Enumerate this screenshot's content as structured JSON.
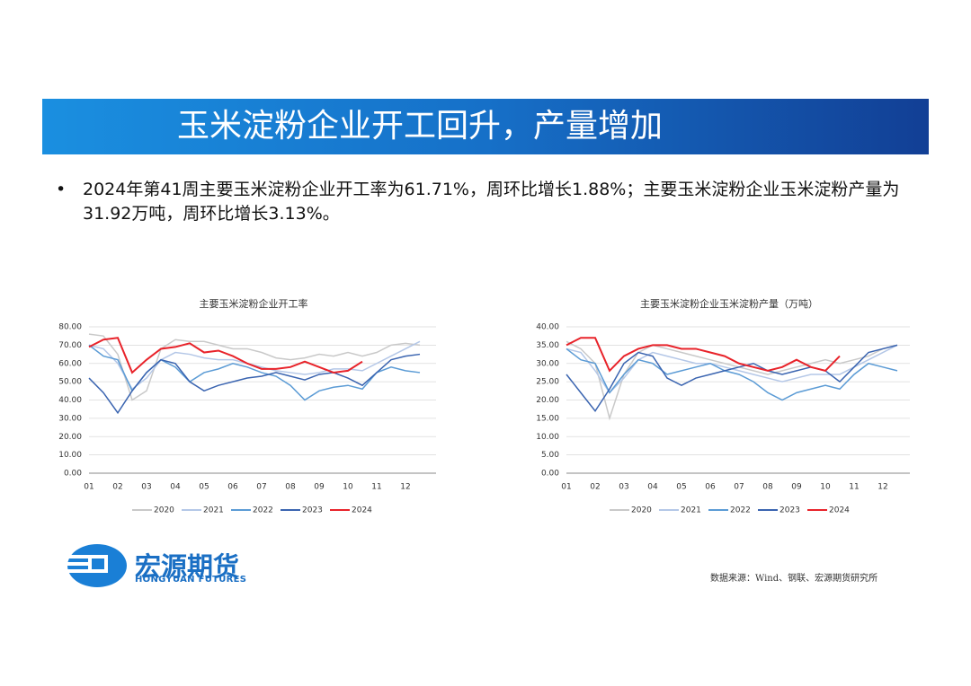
{
  "title": "玉米淀粉企业开工回升，产量增加",
  "bullet": "2024年第41周主要玉米淀粉企业开工率为61.71%，周环比增长1.88%；主要玉米淀粉企业玉米淀粉产量为31.92万吨，周环比增长3.13%。",
  "logo": {
    "cn": "宏源期货",
    "en": "HONGYUAN FUTURES"
  },
  "source": "数据来源：Wind、钢联、宏源期货研究所",
  "chart_data": [
    {
      "type": "line",
      "title": "主要玉米淀粉企业开工率",
      "categories": [
        "01",
        null,
        "02",
        null,
        "03",
        null,
        "04",
        null,
        "05",
        null,
        "06",
        null,
        "07",
        null,
        "08",
        null,
        "09",
        null,
        "10",
        null,
        "11",
        null,
        "12",
        null
      ],
      "ylim": [
        0,
        80
      ],
      "yticks": [
        {
          "value": 0,
          "label": "0.00"
        },
        {
          "value": 10,
          "label": "10.00"
        },
        {
          "value": 20,
          "label": "20.00"
        },
        {
          "value": 30,
          "label": "30.00"
        },
        {
          "value": 40,
          "label": "40.00"
        },
        {
          "value": 50,
          "label": "50.00"
        },
        {
          "value": 60,
          "label": "60.00"
        },
        {
          "value": 70,
          "label": "70.00"
        },
        {
          "value": 80,
          "label": "80.00"
        }
      ],
      "grid": true,
      "series": [
        {
          "name": "2020",
          "color": "#c9c9c9",
          "values": [
            76,
            75,
            65,
            40,
            45,
            68,
            73,
            72,
            72,
            70,
            68,
            68,
            66,
            63,
            62,
            63,
            65,
            64,
            66,
            64,
            66,
            70,
            71,
            70
          ]
        },
        {
          "name": "2021",
          "color": "#b4c7e7",
          "values": [
            70,
            68,
            60,
            46,
            52,
            62,
            66,
            65,
            63,
            62,
            62,
            60,
            58,
            56,
            55,
            54,
            55,
            57,
            57,
            56,
            60,
            64,
            68,
            72
          ]
        },
        {
          "name": "2022",
          "color": "#5b9bd5",
          "values": [
            70,
            64,
            62,
            45,
            55,
            62,
            58,
            50,
            55,
            57,
            60,
            58,
            55,
            53,
            48,
            40,
            45,
            47,
            48,
            46,
            55,
            58,
            56,
            55
          ]
        },
        {
          "name": "2023",
          "color": "#3a64b0",
          "values": [
            52,
            44,
            33,
            45,
            55,
            62,
            60,
            50,
            45,
            48,
            50,
            52,
            53,
            55,
            53,
            51,
            54,
            55,
            52,
            48,
            55,
            62,
            64,
            65
          ]
        },
        {
          "name": "2024",
          "color": "#e8232a",
          "values": [
            69,
            73,
            74,
            55,
            62,
            68,
            69,
            71,
            66,
            67,
            64,
            60,
            57,
            57,
            58,
            61,
            58,
            55,
            56,
            61,
            null,
            null,
            null,
            null
          ]
        }
      ]
    },
    {
      "type": "line",
      "title": "主要玉米淀粉企业玉米淀粉产量（万吨）",
      "categories": [
        "01",
        null,
        "02",
        null,
        "03",
        null,
        "04",
        null,
        "05",
        null,
        "06",
        null,
        "07",
        null,
        "08",
        null,
        "09",
        null,
        "10",
        null,
        "11",
        null,
        "12",
        null
      ],
      "ylim": [
        0,
        40
      ],
      "yticks": [
        {
          "value": 0,
          "label": "0.00"
        },
        {
          "value": 5,
          "label": "5.00"
        },
        {
          "value": 10,
          "label": "10.00"
        },
        {
          "value": 15,
          "label": "15.00"
        },
        {
          "value": 20,
          "label": "20.00"
        },
        {
          "value": 25,
          "label": "25.00"
        },
        {
          "value": 30,
          "label": "30.00"
        },
        {
          "value": 35,
          "label": "35.00"
        },
        {
          "value": 40,
          "label": "40.00"
        }
      ],
      "grid": true,
      "series": [
        {
          "name": "2020",
          "color": "#c9c9c9",
          "values": [
            36,
            34,
            30,
            15,
            27,
            33,
            35,
            34,
            33,
            32,
            31,
            30,
            29,
            28,
            27,
            28,
            29,
            30,
            31,
            30,
            31,
            32,
            34,
            35
          ]
        },
        {
          "name": "2021",
          "color": "#b4c7e7",
          "values": [
            34,
            33,
            28,
            22,
            26,
            31,
            33,
            32,
            31,
            30,
            30,
            29,
            28,
            27,
            26,
            25,
            26,
            27,
            27,
            27,
            29,
            31,
            33,
            35
          ]
        },
        {
          "name": "2022",
          "color": "#5b9bd5",
          "values": [
            34,
            31,
            30,
            22,
            27,
            31,
            30,
            27,
            28,
            29,
            30,
            28,
            27,
            25,
            22,
            20,
            22,
            23,
            24,
            23,
            27,
            30,
            29,
            28
          ]
        },
        {
          "name": "2023",
          "color": "#3a64b0",
          "values": [
            27,
            22,
            17,
            23,
            30,
            33,
            32,
            26,
            24,
            26,
            27,
            28,
            29,
            30,
            28,
            27,
            28,
            29,
            28,
            25,
            29,
            33,
            34,
            35
          ]
        },
        {
          "name": "2024",
          "color": "#e8232a",
          "values": [
            35,
            37,
            37,
            28,
            32,
            34,
            35,
            35,
            34,
            34,
            33,
            32,
            30,
            29,
            28,
            29,
            31,
            29,
            28,
            32,
            null,
            null,
            null,
            null
          ]
        }
      ]
    }
  ]
}
